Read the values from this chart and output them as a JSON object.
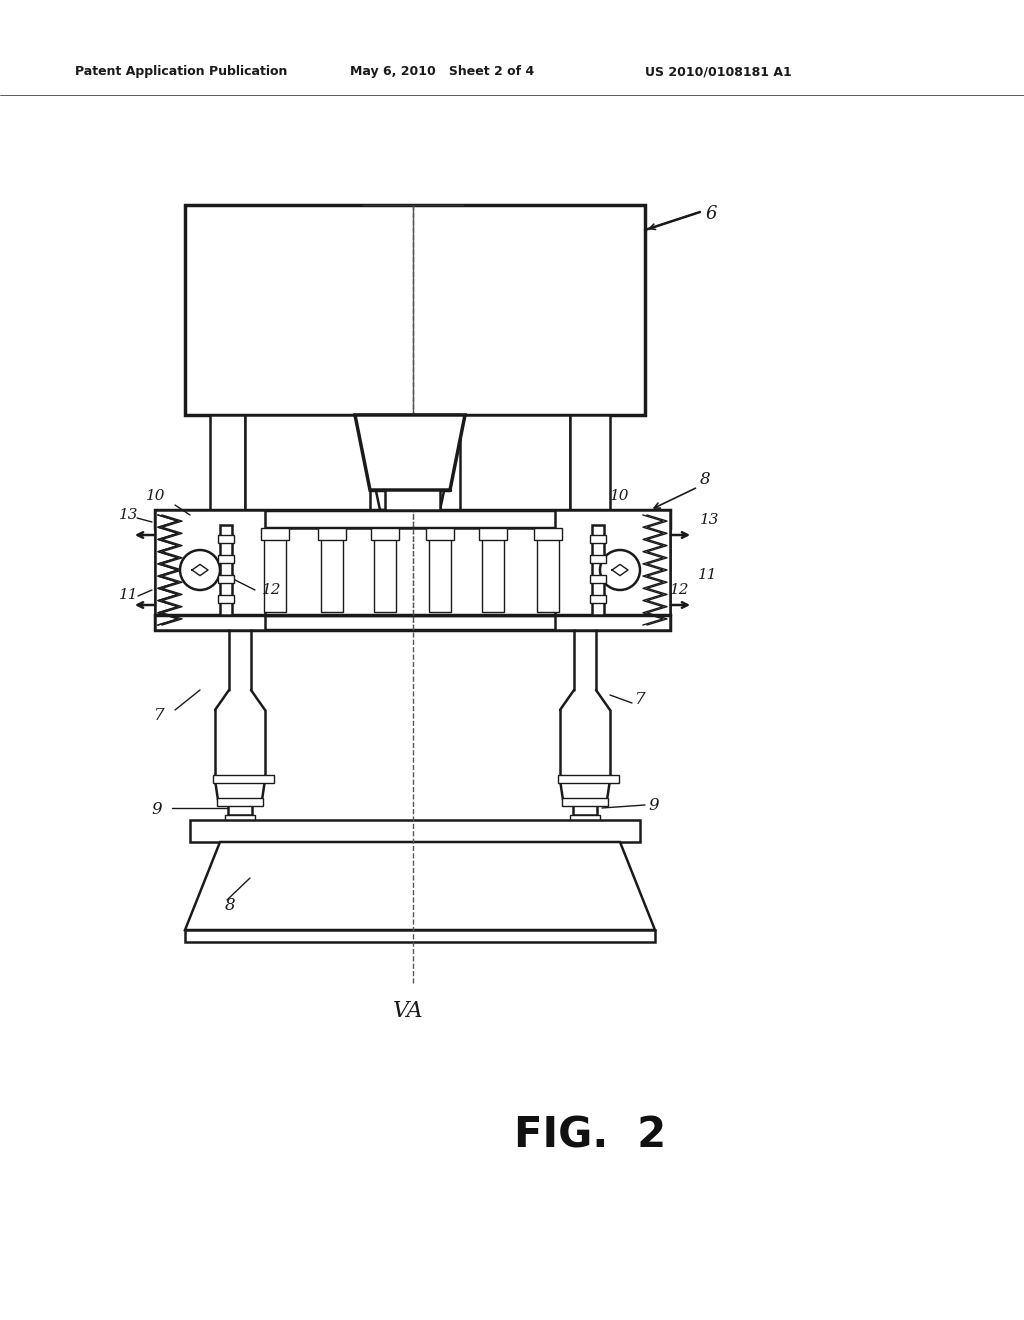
{
  "header_left": "Patent Application Publication",
  "header_mid": "May 6, 2010   Sheet 2 of 4",
  "header_right": "US 2010/0108181 A1",
  "figure_label": "FIG.  2",
  "axis_label": "VA",
  "bg_color": "#ffffff",
  "lc": "#1a1a1a",
  "lw_main": 1.8,
  "lw_thick": 2.5,
  "lw_thin": 1.0
}
